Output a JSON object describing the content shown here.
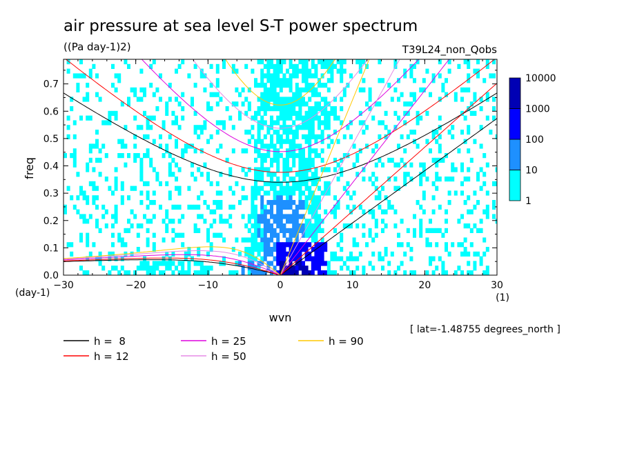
{
  "chart_data": {
    "type": "heatmap",
    "title": "air pressure at sea level S-T power spectrum",
    "units": "((Pa day-1)2)",
    "experiment": "T39L24_non_Qobs",
    "xlabel": "wvn",
    "ylabel": "freq",
    "y_unit": "(day-1)",
    "x_unit": "(1)",
    "xlim": [
      -30,
      30
    ],
    "ylim": [
      0,
      0.79
    ],
    "x_ticks": [
      "-30",
      "-20",
      "-10",
      "0",
      "10",
      "20",
      "30"
    ],
    "y_ticks": [
      "0.0",
      "0.1",
      "0.2",
      "0.3",
      "0.4",
      "0.5",
      "0.6",
      "0.7"
    ],
    "footnote": "[ lat=-1.48755 degrees_north ]",
    "colorbar": {
      "levels": [
        "1",
        "10",
        "100",
        "1000",
        "10000"
      ],
      "colors": [
        "#00ffff",
        "#1e90ff",
        "#0000ff",
        "#0000b4",
        "#4b0082"
      ]
    },
    "dispersion_curves": [
      {
        "label": "h =  8",
        "h": 8,
        "color": "#000000"
      },
      {
        "label": "h = 12",
        "h": 12,
        "color": "#ff0000"
      },
      {
        "label": "h = 25",
        "h": 25,
        "color": "#dd00dd"
      },
      {
        "label": "h = 50",
        "h": 50,
        "color": "#e58ae5"
      },
      {
        "label": "h = 90",
        "h": 90,
        "color": "#ffc800"
      }
    ],
    "grid": false,
    "legend_position": "bottom-left"
  }
}
